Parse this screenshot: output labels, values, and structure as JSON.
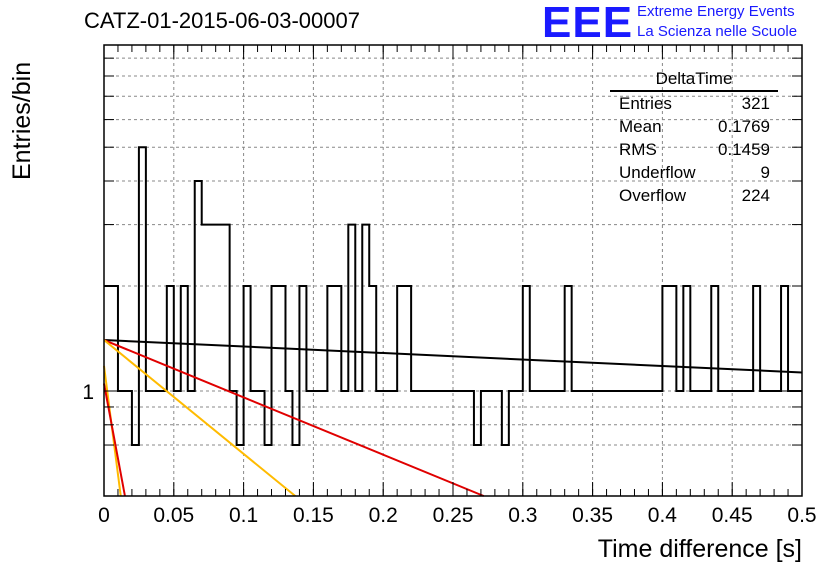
{
  "chart_data": {
    "type": "histogram",
    "title": "CATZ-01-2015-06-03-00007",
    "xlabel": "Time difference [s]",
    "ylabel": "Entries/bin",
    "x_range": [
      0,
      0.5
    ],
    "x_ticks": [
      "0",
      "0.05",
      "0.1",
      "0.15",
      "0.2",
      "0.25",
      "0.3",
      "0.35",
      "0.4",
      "0.45",
      "0.5"
    ],
    "y_scale": "log",
    "y_tick_labels": [
      "1"
    ],
    "grid": true,
    "bin_width": 0.005,
    "bin_values": [
      2,
      2,
      1,
      1,
      0.7,
      5,
      1,
      1,
      1,
      2,
      1,
      2,
      1,
      4,
      3,
      3,
      3,
      3,
      1,
      0.7,
      2,
      1,
      1,
      0.7,
      2,
      2,
      1,
      0.7,
      2,
      1,
      1,
      1,
      2,
      2,
      1,
      3,
      1,
      3,
      2,
      1,
      1,
      1,
      2,
      2,
      1,
      1,
      1,
      1,
      1,
      1,
      1,
      1,
      1,
      0.7,
      1,
      1,
      1,
      0.7,
      1,
      1,
      2,
      1,
      1,
      1,
      1,
      1,
      2,
      1,
      1,
      1,
      1,
      1,
      1,
      1,
      1,
      1,
      1,
      1,
      1,
      1,
      2,
      2,
      1,
      2,
      1,
      1,
      1,
      2,
      1,
      1,
      1,
      1,
      1,
      2,
      1,
      1,
      1,
      2,
      1,
      1
    ],
    "bin_values_note_omitted": false,
    "curves": [
      {
        "color": "#000000",
        "type": "exp-fit",
        "y_at_0": 1.4,
        "y_at_end": 1.13
      },
      {
        "color": "#e00000",
        "type": "exp-fit",
        "y_at_0": 1.4,
        "x_at_floor": 0.272
      },
      {
        "color": "#ffbb00",
        "type": "exp-fit",
        "y_at_0": 1.4,
        "x_at_floor": 0.137
      },
      {
        "color": "#ffbb00",
        "type": "exp-fit",
        "y_at_0": 1.18,
        "x_at_floor": 0.012
      },
      {
        "color": "#e00000",
        "type": "exp-fit",
        "y_at_0": 1.05,
        "x_at_floor": 0.015
      }
    ],
    "stats": {
      "title": "DeltaTime",
      "rows": [
        {
          "label": "Entries",
          "value": "321"
        },
        {
          "label": "Mean",
          "value": "0.1769"
        },
        {
          "label": "RMS",
          "value": "0.1459"
        },
        {
          "label": "Underflow",
          "value": "9"
        },
        {
          "label": "Overflow",
          "value": "224"
        }
      ]
    }
  },
  "logo": {
    "big": "EEE",
    "line1": "Extreme Energy Events",
    "line2": "La Scienza nelle Scuole"
  }
}
